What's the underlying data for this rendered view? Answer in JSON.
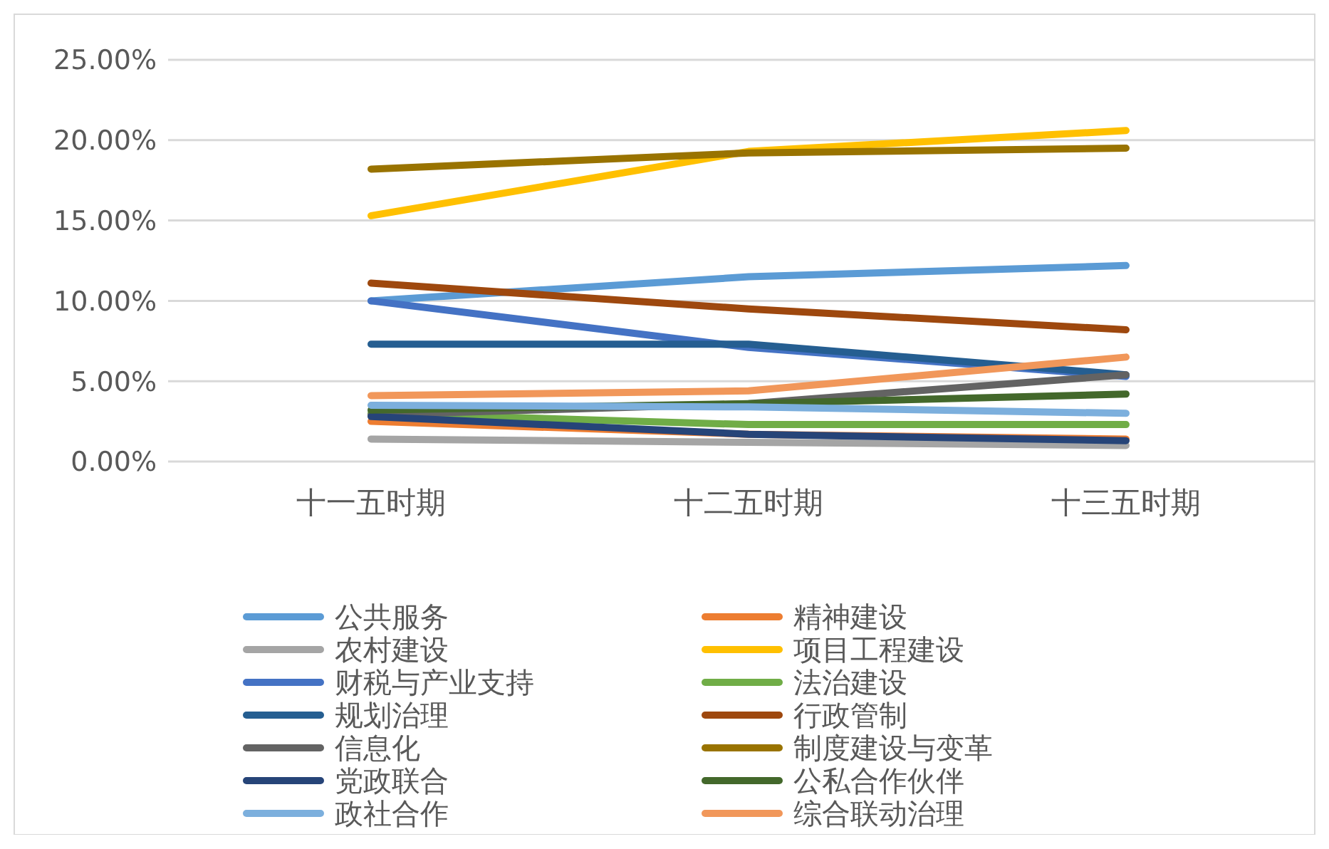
{
  "chart_data": {
    "type": "line",
    "categories": [
      "十一五时期",
      "十二五时期",
      "十三五时期"
    ],
    "ylim": [
      0,
      25
    ],
    "yticks": [
      {
        "value": 0,
        "label": "0.00%"
      },
      {
        "value": 5,
        "label": "5.00%"
      },
      {
        "value": 10,
        "label": "10.00%"
      },
      {
        "value": 15,
        "label": "15.00%"
      },
      {
        "value": 20,
        "label": "20.00%"
      },
      {
        "value": 25,
        "label": "25.00%"
      }
    ],
    "grid": "y",
    "legend": "bottom",
    "marker": "none",
    "line_style": "solid",
    "series": [
      {
        "name": "公共服务",
        "color": "#5b9bd5",
        "values": [
          10.0,
          11.5,
          12.2
        ]
      },
      {
        "name": "精神建设",
        "color": "#ed7d31",
        "values": [
          2.5,
          1.7,
          1.4
        ]
      },
      {
        "name": "农村建设",
        "color": "#a5a5a5",
        "values": [
          1.4,
          1.2,
          1.0
        ]
      },
      {
        "name": "项目工程建设",
        "color": "#ffc000",
        "values": [
          15.3,
          19.3,
          20.6
        ]
      },
      {
        "name": "财税与产业支持",
        "color": "#4472c4",
        "values": [
          10.0,
          7.1,
          5.3
        ]
      },
      {
        "name": "法治建设",
        "color": "#70ad47",
        "values": [
          3.0,
          2.3,
          2.3
        ]
      },
      {
        "name": "规划治理",
        "color": "#255e91",
        "values": [
          7.3,
          7.3,
          5.4
        ]
      },
      {
        "name": "行政管制",
        "color": "#9e480e",
        "values": [
          11.1,
          9.5,
          8.2
        ]
      },
      {
        "name": "信息化",
        "color": "#636363",
        "values": [
          2.9,
          3.6,
          5.4
        ]
      },
      {
        "name": "制度建设与变革",
        "color": "#997300",
        "values": [
          18.2,
          19.2,
          19.5
        ]
      },
      {
        "name": "党政联合",
        "color": "#264478",
        "values": [
          2.8,
          1.7,
          1.3
        ]
      },
      {
        "name": "公私合作伙伴",
        "color": "#43682b",
        "values": [
          3.2,
          3.6,
          4.2
        ]
      },
      {
        "name": "政社合作",
        "color": "#7cafdd",
        "values": [
          3.5,
          3.4,
          3.0
        ]
      },
      {
        "name": "综合联动治理",
        "color": "#f1975a",
        "values": [
          4.1,
          4.4,
          6.5
        ]
      }
    ]
  }
}
